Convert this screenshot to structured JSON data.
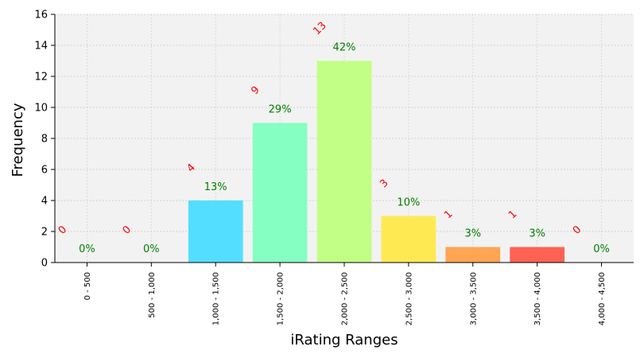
{
  "chart_data": {
    "type": "bar",
    "xlabel": "iRating Ranges",
    "ylabel": "Frequency",
    "ylim": [
      0,
      16
    ],
    "yticks": [
      0,
      2,
      4,
      6,
      8,
      10,
      12,
      14,
      16
    ],
    "grid": true,
    "categories": [
      "0 - 500",
      "500 - 1,000",
      "1,000 - 1,500",
      "1,500 - 2,000",
      "2,000 - 2,500",
      "2,500 - 3,000",
      "3,000 - 3,500",
      "3,500 - 4,000",
      "4,000 - 4,500"
    ],
    "values": [
      0,
      0,
      4,
      9,
      13,
      3,
      1,
      1,
      0
    ],
    "percent_labels": [
      "0%",
      "0%",
      "13%",
      "29%",
      "42%",
      "10%",
      "3%",
      "3%",
      "0%"
    ],
    "count_labels": [
      "0",
      "0",
      "4",
      "9",
      "13",
      "3",
      "1",
      "1",
      "0"
    ],
    "colors": [
      "#3fc0ff",
      "#3fd9ff",
      "#4adcff",
      "#7fffbf",
      "#bfff7f",
      "#ffe84a",
      "#ffa04a",
      "#ff5a4a",
      "#ff3a3a"
    ],
    "plot_background": "#f2f2f2",
    "count_label_color": "#ff0000",
    "percent_label_color": "#008000"
  }
}
